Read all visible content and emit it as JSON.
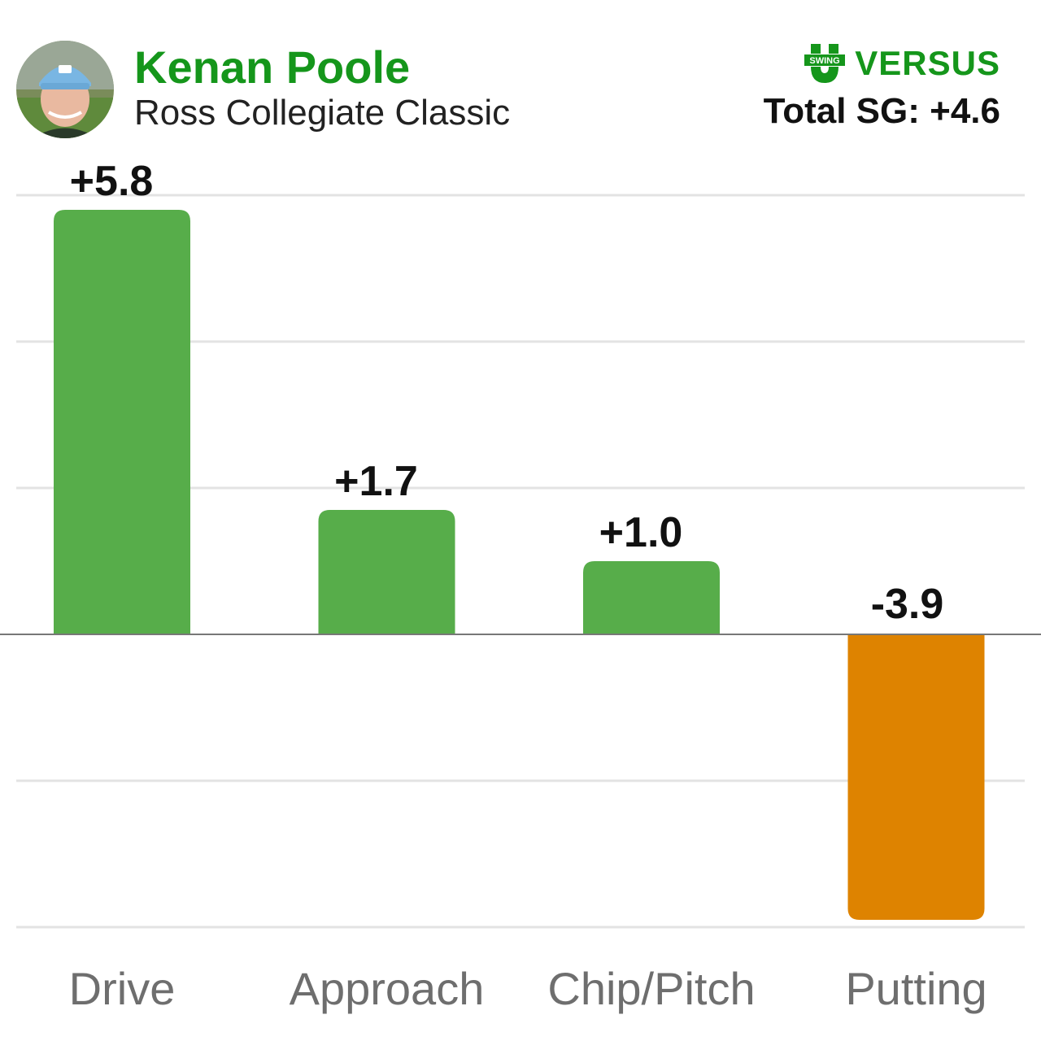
{
  "header": {
    "player_name": "Kenan Poole",
    "event_name": "Ross Collegiate Classic",
    "logo_badge": "SWING",
    "logo_word": "VERSUS",
    "total_sg": "Total SG: +4.6",
    "avatar_icon": "player-photo"
  },
  "colors": {
    "brand_green": "#15961b",
    "positive_bar": "#57ad4a",
    "negative_bar": "#de8300"
  },
  "chart_data": {
    "type": "bar",
    "categories": [
      "Drive",
      "Approach",
      "Chip/Pitch",
      "Putting"
    ],
    "values": [
      5.8,
      1.7,
      1.0,
      -3.9
    ],
    "value_labels": [
      "+5.8",
      "+1.7",
      "+1.0",
      "-3.9"
    ],
    "title": "",
    "xlabel": "",
    "ylabel": "",
    "ylim": [
      -4,
      6
    ],
    "grid": true,
    "legend": "none"
  }
}
